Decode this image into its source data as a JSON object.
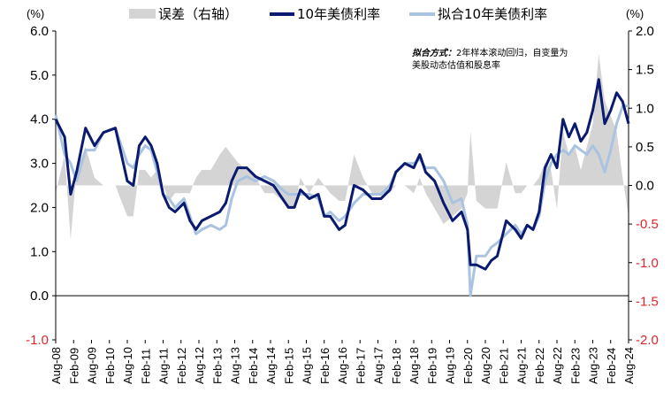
{
  "chart_data": {
    "type": "line",
    "units": {
      "left": "(%)",
      "right": "(%)"
    },
    "note": {
      "label": "拟合方式：",
      "line1": "2年样本滚动回归，自变量为",
      "line2": "美股动态估值和股息率"
    },
    "y_left": {
      "min": -1.0,
      "max": 6.0,
      "ticks": [
        "6.0",
        "5.0",
        "4.0",
        "3.0",
        "2.0",
        "1.0",
        "0.0",
        "-1.0"
      ]
    },
    "y_right": {
      "min": -2.0,
      "max": 2.0,
      "ticks": [
        "2.0",
        "1.5",
        "1.0",
        "0.5",
        "0.0",
        "-0.5",
        "-1.0",
        "-1.5",
        "-2.0"
      ]
    },
    "x_range": [
      "2008-08",
      "2024-08"
    ],
    "x_ticks": [
      "Aug-08",
      "Feb-09",
      "Aug-09",
      "Feb-10",
      "Aug-10",
      "Feb-11",
      "Aug-11",
      "Feb-12",
      "Aug-12",
      "Feb-13",
      "Aug-13",
      "Feb-14",
      "Aug-14",
      "Feb-15",
      "Aug-15",
      "Feb-16",
      "Aug-16",
      "Feb-17",
      "Aug-17",
      "Feb-18",
      "Aug-18",
      "Feb-19",
      "Aug-19",
      "Feb-20",
      "Aug-20",
      "Feb-21",
      "Aug-21",
      "Feb-22",
      "Aug-22",
      "Feb-23",
      "Aug-23",
      "Feb-24",
      "Aug-24"
    ],
    "colors": {
      "yield": "#0a1a6e",
      "fitted": "#a9c3e0",
      "error": "#d4d4d4",
      "axis_neg": "#e0262c"
    },
    "series": [
      {
        "name": "10年美债利率",
        "axis": "left",
        "x": [
          "2008-08",
          "2008-11",
          "2009-01",
          "2009-03",
          "2009-06",
          "2009-09",
          "2009-12",
          "2010-04",
          "2010-06",
          "2010-08",
          "2010-10",
          "2010-12",
          "2011-02",
          "2011-04",
          "2011-06",
          "2011-08",
          "2011-10",
          "2011-12",
          "2012-03",
          "2012-05",
          "2012-07",
          "2012-09",
          "2012-12",
          "2013-03",
          "2013-05",
          "2013-07",
          "2013-09",
          "2013-12",
          "2014-03",
          "2014-06",
          "2014-09",
          "2014-12",
          "2015-02",
          "2015-04",
          "2015-06",
          "2015-09",
          "2015-12",
          "2016-02",
          "2016-04",
          "2016-07",
          "2016-09",
          "2016-12",
          "2017-03",
          "2017-06",
          "2017-09",
          "2017-12",
          "2018-02",
          "2018-05",
          "2018-08",
          "2018-10",
          "2018-12",
          "2019-03",
          "2019-06",
          "2019-09",
          "2019-12",
          "2020-02",
          "2020-03",
          "2020-05",
          "2020-08",
          "2020-10",
          "2020-12",
          "2021-03",
          "2021-06",
          "2021-08",
          "2021-10",
          "2021-12",
          "2022-02",
          "2022-04",
          "2022-06",
          "2022-08",
          "2022-10",
          "2022-12",
          "2023-02",
          "2023-04",
          "2023-06",
          "2023-08",
          "2023-10",
          "2023-12",
          "2024-02",
          "2024-04",
          "2024-06",
          "2024-08"
        ],
        "y": [
          4.0,
          3.6,
          2.3,
          2.8,
          3.8,
          3.4,
          3.7,
          3.8,
          3.2,
          2.6,
          2.5,
          3.4,
          3.6,
          3.4,
          3.0,
          2.3,
          2.0,
          1.9,
          2.1,
          1.7,
          1.5,
          1.7,
          1.8,
          1.9,
          2.1,
          2.6,
          2.9,
          2.9,
          2.7,
          2.6,
          2.5,
          2.2,
          2.0,
          2.0,
          2.4,
          2.2,
          2.3,
          1.8,
          1.8,
          1.5,
          1.6,
          2.5,
          2.4,
          2.2,
          2.2,
          2.4,
          2.8,
          3.0,
          2.9,
          3.2,
          2.8,
          2.6,
          2.1,
          1.7,
          1.9,
          1.5,
          0.7,
          0.7,
          0.6,
          0.8,
          0.9,
          1.7,
          1.5,
          1.3,
          1.6,
          1.5,
          1.9,
          2.9,
          3.2,
          2.9,
          4.0,
          3.6,
          3.9,
          3.5,
          3.7,
          4.2,
          4.9,
          3.9,
          4.2,
          4.6,
          4.4,
          3.9
        ]
      },
      {
        "name": "拟合10年美债利率",
        "axis": "left",
        "x": [
          "2008-08",
          "2008-11",
          "2009-01",
          "2009-03",
          "2009-06",
          "2009-09",
          "2009-12",
          "2010-04",
          "2010-06",
          "2010-08",
          "2010-10",
          "2010-12",
          "2011-02",
          "2011-04",
          "2011-06",
          "2011-08",
          "2011-10",
          "2011-12",
          "2012-03",
          "2012-05",
          "2012-07",
          "2012-09",
          "2012-12",
          "2013-03",
          "2013-05",
          "2013-07",
          "2013-09",
          "2013-12",
          "2014-03",
          "2014-06",
          "2014-09",
          "2014-12",
          "2015-02",
          "2015-04",
          "2015-06",
          "2015-09",
          "2015-12",
          "2016-02",
          "2016-04",
          "2016-07",
          "2016-09",
          "2016-12",
          "2017-03",
          "2017-06",
          "2017-09",
          "2017-12",
          "2018-02",
          "2018-05",
          "2018-08",
          "2018-10",
          "2018-12",
          "2019-03",
          "2019-06",
          "2019-09",
          "2019-12",
          "2020-02",
          "2020-03",
          "2020-05",
          "2020-08",
          "2020-10",
          "2020-12",
          "2021-03",
          "2021-06",
          "2021-08",
          "2021-10",
          "2021-12",
          "2022-02",
          "2022-04",
          "2022-06",
          "2022-08",
          "2022-10",
          "2022-12",
          "2023-02",
          "2023-04",
          "2023-06",
          "2023-08",
          "2023-10",
          "2023-12",
          "2024-02",
          "2024-04",
          "2024-06",
          "2024-08"
        ],
        "y": [
          4.1,
          3.2,
          3.0,
          2.6,
          3.3,
          3.3,
          3.7,
          3.8,
          3.4,
          3.0,
          2.9,
          3.2,
          3.4,
          3.3,
          2.8,
          2.3,
          2.2,
          2.0,
          2.2,
          1.8,
          1.4,
          1.5,
          1.6,
          1.5,
          1.6,
          2.2,
          2.6,
          2.7,
          2.6,
          2.7,
          2.6,
          2.4,
          2.3,
          2.3,
          2.3,
          2.3,
          2.2,
          1.8,
          1.9,
          1.7,
          1.8,
          2.1,
          2.3,
          2.3,
          2.3,
          2.5,
          2.8,
          3.0,
          3.0,
          3.1,
          2.9,
          2.9,
          2.6,
          2.1,
          2.2,
          1.6,
          0.0,
          0.9,
          0.9,
          1.1,
          1.2,
          1.4,
          1.6,
          1.4,
          1.6,
          1.5,
          1.8,
          2.6,
          3.0,
          3.2,
          3.3,
          3.2,
          3.4,
          3.3,
          3.2,
          3.4,
          3.2,
          2.8,
          3.3,
          3.9,
          4.3,
          4.3
        ]
      },
      {
        "name": "误差（右轴）",
        "axis": "right",
        "type": "area",
        "x": [
          "2008-08",
          "2008-11",
          "2009-01",
          "2009-03",
          "2009-06",
          "2009-09",
          "2009-12",
          "2010-04",
          "2010-06",
          "2010-08",
          "2010-10",
          "2010-12",
          "2011-02",
          "2011-04",
          "2011-06",
          "2011-08",
          "2011-10",
          "2011-12",
          "2012-03",
          "2012-05",
          "2012-07",
          "2012-09",
          "2012-12",
          "2013-03",
          "2013-05",
          "2013-07",
          "2013-09",
          "2013-12",
          "2014-03",
          "2014-06",
          "2014-09",
          "2014-12",
          "2015-02",
          "2015-04",
          "2015-06",
          "2015-09",
          "2015-12",
          "2016-02",
          "2016-04",
          "2016-07",
          "2016-09",
          "2016-12",
          "2017-03",
          "2017-06",
          "2017-09",
          "2017-12",
          "2018-02",
          "2018-05",
          "2018-08",
          "2018-10",
          "2018-12",
          "2019-03",
          "2019-06",
          "2019-09",
          "2019-12",
          "2020-02",
          "2020-03",
          "2020-05",
          "2020-08",
          "2020-10",
          "2020-12",
          "2021-03",
          "2021-06",
          "2021-08",
          "2021-10",
          "2021-12",
          "2022-02",
          "2022-04",
          "2022-06",
          "2022-08",
          "2022-10",
          "2022-12",
          "2023-02",
          "2023-04",
          "2023-06",
          "2023-08",
          "2023-10",
          "2023-12",
          "2024-02",
          "2024-04",
          "2024-06",
          "2024-08"
        ],
        "y": [
          -0.1,
          0.4,
          -0.7,
          0.2,
          0.5,
          0.1,
          0.0,
          0.0,
          -0.2,
          -0.4,
          -0.4,
          0.2,
          0.2,
          0.1,
          0.2,
          0.0,
          -0.2,
          -0.1,
          -0.1,
          -0.1,
          0.1,
          0.2,
          0.2,
          0.4,
          0.5,
          0.4,
          0.3,
          0.2,
          0.1,
          -0.1,
          -0.1,
          -0.2,
          -0.3,
          -0.3,
          0.1,
          -0.1,
          0.1,
          0.0,
          -0.1,
          -0.2,
          -0.2,
          0.4,
          0.1,
          -0.1,
          -0.1,
          -0.1,
          0.0,
          0.0,
          -0.1,
          0.1,
          -0.1,
          -0.3,
          -0.5,
          -0.4,
          -0.3,
          -0.1,
          0.7,
          -0.2,
          -0.3,
          -0.3,
          -0.3,
          0.3,
          -0.1,
          -0.1,
          0.0,
          0.0,
          0.1,
          0.3,
          0.2,
          -0.3,
          0.7,
          0.4,
          0.5,
          0.2,
          0.5,
          0.8,
          1.7,
          1.1,
          0.9,
          0.7,
          0.1,
          -0.4
        ]
      }
    ],
    "legend": {
      "placement": "top"
    }
  }
}
